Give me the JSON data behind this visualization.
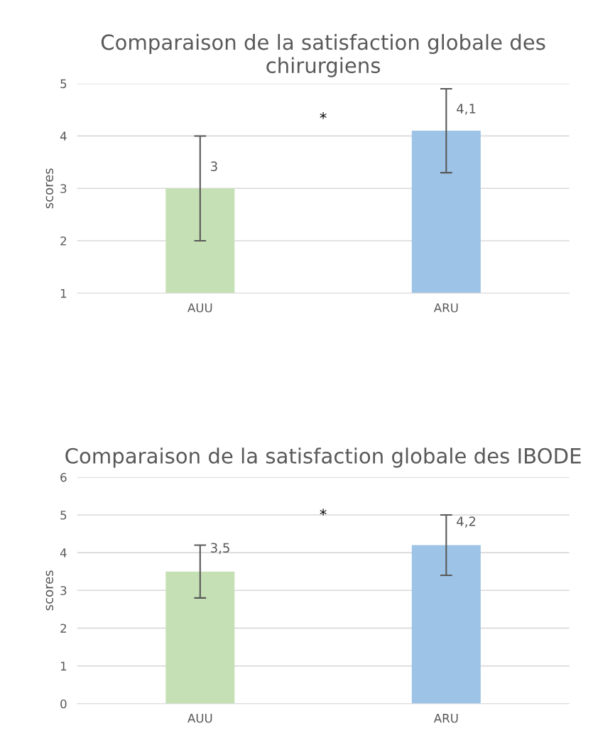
{
  "chart_data": [
    {
      "type": "bar",
      "title": "Comparaison de la satisfaction globale des chirurgiens",
      "ylabel": "scores",
      "categories": [
        "AUU",
        "ARU"
      ],
      "values": [
        3,
        4.1
      ],
      "colors": [
        "#c5e0b4",
        "#9dc3e6"
      ],
      "errors": [
        1,
        0.8
      ],
      "value_labels": [
        "3",
        "4,1"
      ],
      "ylim": [
        1,
        5
      ],
      "yticks": [
        1,
        2,
        3,
        4,
        5
      ],
      "grid": "y",
      "annotations": [
        "*"
      ]
    },
    {
      "type": "bar",
      "title": "Comparaison de la satisfaction globale des IBODE",
      "ylabel": "scores",
      "categories": [
        "AUU",
        "ARU"
      ],
      "values": [
        3.5,
        4.2
      ],
      "colors": [
        "#c5e0b4",
        "#9dc3e6"
      ],
      "errors": [
        0.7,
        0.8
      ],
      "value_labels": [
        "3,5",
        "4,2"
      ],
      "ylim": [
        0,
        6
      ],
      "yticks": [
        0,
        1,
        2,
        3,
        4,
        5,
        6
      ],
      "grid": "y",
      "annotations": [
        "*"
      ]
    }
  ]
}
